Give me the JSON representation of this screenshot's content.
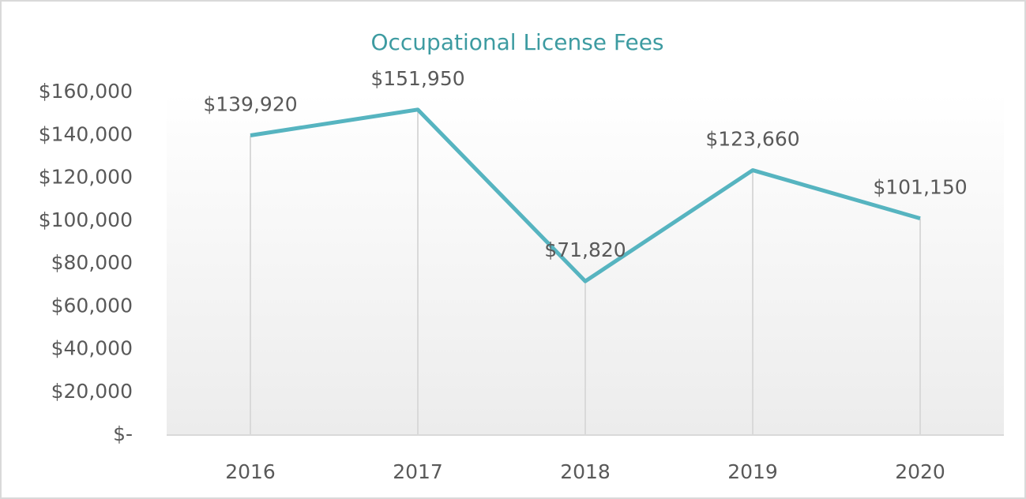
{
  "chart_data": {
    "type": "line",
    "title": "Occupational License Fees",
    "categories": [
      "2016",
      "2017",
      "2018",
      "2019",
      "2020"
    ],
    "series": [
      {
        "name": "Occupational License Fees",
        "color": "#56b4c0",
        "values": [
          139920,
          151950,
          71820,
          123660,
          101150
        ],
        "value_labels": [
          "$139,920",
          "$151,950",
          "$71,820",
          "$123,660",
          "$101,150"
        ]
      }
    ],
    "ylim": [
      0,
      160000
    ],
    "yticks": [
      {
        "value": 0,
        "label": "$-"
      },
      {
        "value": 20000,
        "label": "$20,000"
      },
      {
        "value": 40000,
        "label": "$40,000"
      },
      {
        "value": 60000,
        "label": "$60,000"
      },
      {
        "value": 80000,
        "label": "$80,000"
      },
      {
        "value": 100000,
        "label": "$100,000"
      },
      {
        "value": 120000,
        "label": "$120,000"
      },
      {
        "value": 140000,
        "label": "$140,000"
      },
      {
        "value": 160000,
        "label": "$160,000"
      }
    ],
    "drop_lines": true
  }
}
